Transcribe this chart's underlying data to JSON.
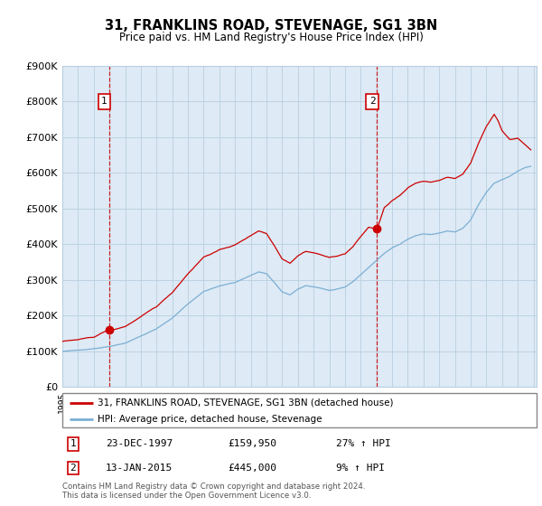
{
  "title": "31, FRANKLINS ROAD, STEVENAGE, SG1 3BN",
  "subtitle": "Price paid vs. HM Land Registry's House Price Index (HPI)",
  "ylim": [
    0,
    900000
  ],
  "yticks": [
    0,
    100000,
    200000,
    300000,
    400000,
    500000,
    600000,
    700000,
    800000,
    900000
  ],
  "ytick_labels": [
    "£0",
    "£100K",
    "£200K",
    "£300K",
    "£400K",
    "£500K",
    "£600K",
    "£700K",
    "£800K",
    "£900K"
  ],
  "sale1_date": 1997.97,
  "sale1_price": 159950,
  "sale1_label": "1",
  "sale1_text": "23-DEC-1997",
  "sale1_amount": "£159,950",
  "sale1_hpi": "27% ↑ HPI",
  "sale2_date": 2015.04,
  "sale2_price": 445000,
  "sale2_label": "2",
  "sale2_text": "13-JAN-2015",
  "sale2_amount": "£445,000",
  "sale2_hpi": "9% ↑ HPI",
  "legend_line1": "31, FRANKLINS ROAD, STEVENAGE, SG1 3BN (detached house)",
  "legend_line2": "HPI: Average price, detached house, Stevenage",
  "footer": "Contains HM Land Registry data © Crown copyright and database right 2024.\nThis data is licensed under the Open Government Licence v3.0.",
  "line_color_red": "#cc0000",
  "line_color_blue": "#7bafd4",
  "bg_color": "#deeaf5",
  "chart_bg": "#deeaf5",
  "grid_color": "#b8cfe0",
  "outer_bg": "#ffffff",
  "xlim_left": 1995.0,
  "xlim_right": 2025.2
}
